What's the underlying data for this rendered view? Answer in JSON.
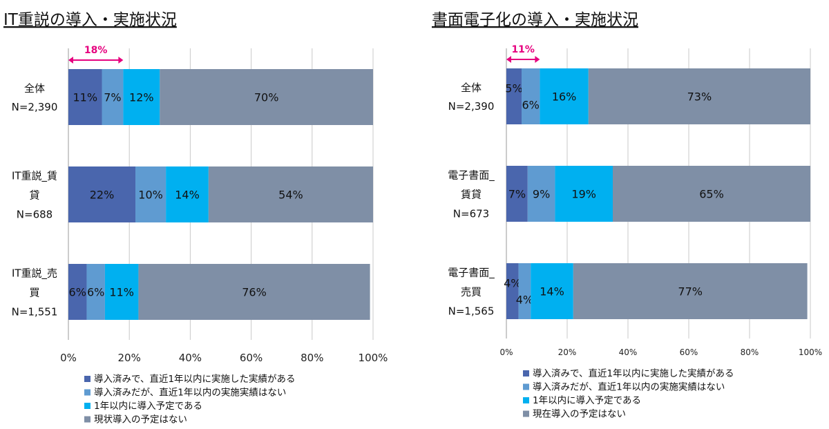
{
  "colors": {
    "s1": "#4a66ad",
    "s2": "#5f9bd1",
    "s3": "#00b0f0",
    "s4": "#7f8fa6",
    "annotation": "#e6007e",
    "grid": "#c8c8c8"
  },
  "chart_data": [
    {
      "type": "bar",
      "orientation": "horizontal-stacked-100",
      "title": "IT重説の導入・実施状況",
      "categories": [
        [
          "全体",
          "N=2,390"
        ],
        [
          "IT重説_賃",
          "貸",
          "N=688"
        ],
        [
          "IT重説_売",
          "買",
          "N=1,551"
        ]
      ],
      "series": [
        {
          "name": "導入済みで、直近1年以内に実施した実績がある",
          "values": [
            11,
            22,
            6
          ]
        },
        {
          "name": "導入済みだが、直近1年以内の実施実績はない",
          "values": [
            7,
            10,
            6
          ]
        },
        {
          "name": "1年以内に導入予定である",
          "values": [
            12,
            14,
            11
          ]
        },
        {
          "name": "現状導入の予定はない",
          "values": [
            70,
            54,
            76
          ]
        }
      ],
      "xlim": [
        0,
        100
      ],
      "xticks": [
        "0%",
        "20%",
        "40%",
        "60%",
        "80%",
        "100%"
      ],
      "grid": true,
      "legend": "bottom",
      "annotation": {
        "label": "18%",
        "from": 0,
        "to": 18
      }
    },
    {
      "type": "bar",
      "orientation": "horizontal-stacked-100",
      "title": "書面電子化の導入・実施状況",
      "categories": [
        [
          "全体",
          "N=2,390"
        ],
        [
          "電子書面_",
          "賃貸",
          "N=673"
        ],
        [
          "電子書面_",
          "売買",
          "N=1,565"
        ]
      ],
      "series": [
        {
          "name": "導入済みで、直近1年以内に実施した実績がある",
          "values": [
            5,
            7,
            4
          ]
        },
        {
          "name": "導入済みだが、直近1年以内の実施実績はない",
          "values": [
            6,
            9,
            4
          ]
        },
        {
          "name": "1年以内に導入予定である",
          "values": [
            16,
            19,
            14
          ]
        },
        {
          "name": "現在導入の予定はない",
          "values": [
            73,
            65,
            77
          ]
        }
      ],
      "xlim": [
        0,
        100
      ],
      "xticks": [
        "0%",
        "20%",
        "40%",
        "60%",
        "80%",
        "100%"
      ],
      "grid": true,
      "legend": "bottom",
      "annotation": {
        "label": "11%",
        "from": 0,
        "to": 11
      }
    }
  ]
}
